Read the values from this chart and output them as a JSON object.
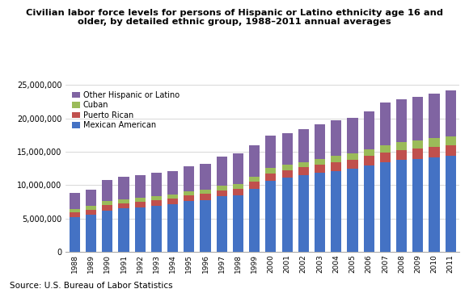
{
  "years": [
    1988,
    1989,
    1990,
    1991,
    1992,
    1993,
    1994,
    1995,
    1996,
    1997,
    1998,
    1999,
    2000,
    2001,
    2002,
    2003,
    2004,
    2005,
    2006,
    2007,
    2008,
    2009,
    2010,
    2011
  ],
  "mexican_american": [
    5200000,
    5600000,
    6200000,
    6500000,
    6700000,
    6900000,
    7100000,
    7600000,
    7800000,
    8300000,
    8500000,
    9500000,
    10700000,
    11100000,
    11450000,
    11850000,
    12150000,
    12450000,
    12950000,
    13450000,
    13750000,
    13950000,
    14200000,
    14350000
  ],
  "puerto_rican": [
    700000,
    730000,
    780000,
    790000,
    810000,
    820000,
    840000,
    860000,
    900000,
    940000,
    980000,
    1000000,
    1100000,
    1150000,
    1200000,
    1250000,
    1300000,
    1350000,
    1400000,
    1450000,
    1500000,
    1550000,
    1550000,
    1600000
  ],
  "cuban": [
    560000,
    570000,
    600000,
    610000,
    620000,
    640000,
    650000,
    670000,
    680000,
    700000,
    730000,
    750000,
    800000,
    820000,
    840000,
    870000,
    900000,
    950000,
    1000000,
    1100000,
    1150000,
    1200000,
    1250000,
    1300000
  ],
  "other_hispanic": [
    2400000,
    2450000,
    3200000,
    3300000,
    3400000,
    3450000,
    3550000,
    3700000,
    3850000,
    4300000,
    4600000,
    4750000,
    4850000,
    4750000,
    4900000,
    5100000,
    5350000,
    5350000,
    5750000,
    6400000,
    6500000,
    6500000,
    6700000,
    6900000
  ],
  "colors": {
    "mexican_american": "#4472C4",
    "puerto_rican": "#C0504D",
    "cuban": "#9BBB59",
    "other_hispanic": "#8064A2"
  },
  "title_line1": "Civilian labor force levels for persons of Hispanic or Latino ethnicity age 16 and",
  "title_line2": "older, by detailed ethnic group, 1988–2011 annual averages",
  "ylim": [
    0,
    25000000
  ],
  "yticks": [
    0,
    5000000,
    10000000,
    15000000,
    20000000,
    25000000
  ],
  "source": "Source: U.S. Bureau of Labor Statistics",
  "legend_labels": [
    "Other Hispanic or Latino",
    "Cuban",
    "Puerto Rican",
    "Mexican American"
  ]
}
